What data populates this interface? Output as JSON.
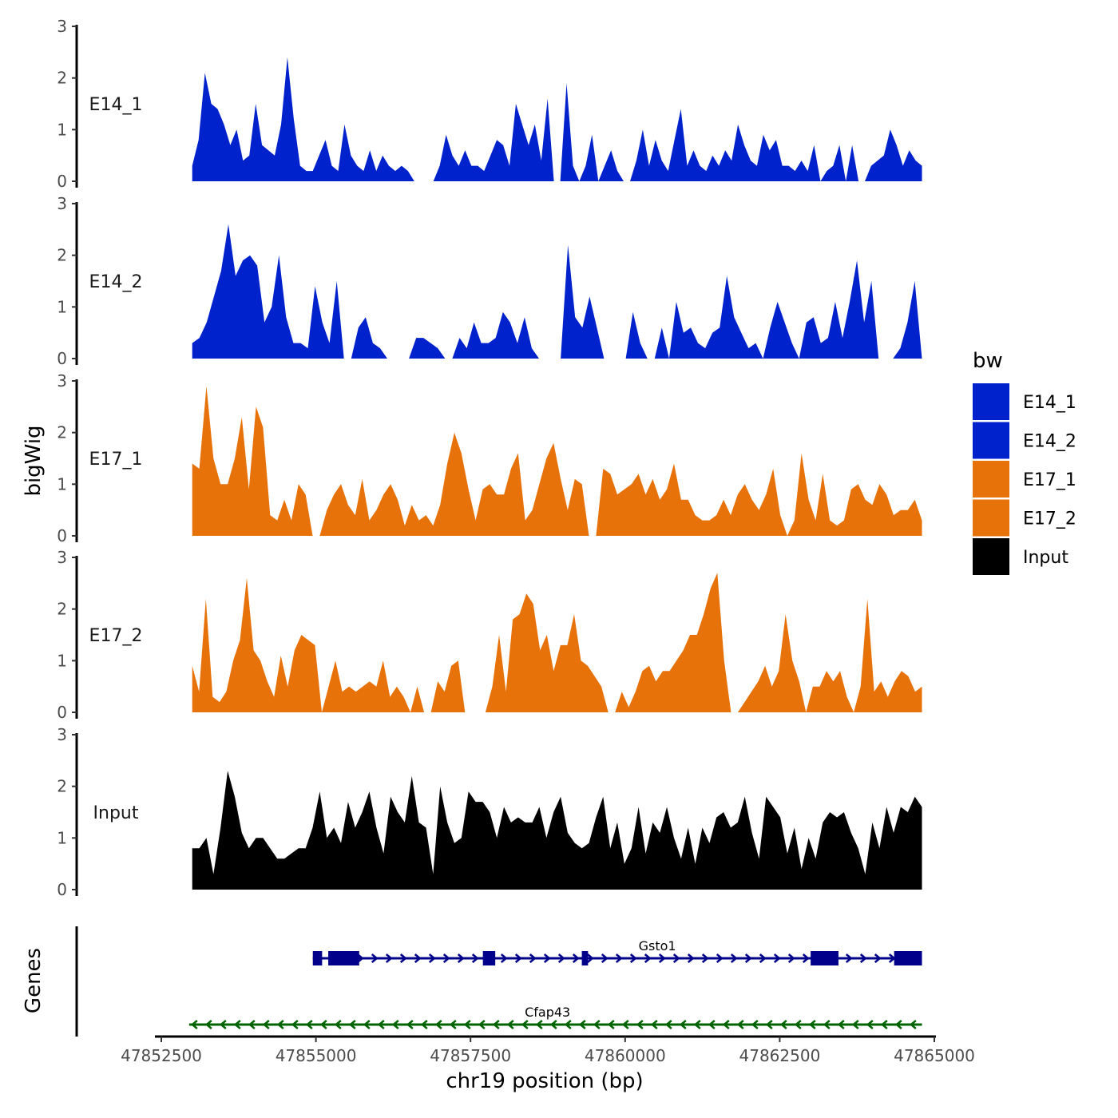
{
  "chart_data": {
    "type": "area",
    "xlabel": "chr19 position (bp)",
    "ylabel": "bigWig",
    "genes_axis_label": "Genes",
    "xlim": [
      47852400,
      47865200
    ],
    "x_ticks": [
      47852500,
      47855000,
      47857500,
      47860000,
      47862500,
      47865000
    ],
    "x_tick_labels": [
      "47852500",
      "47855000",
      "47857500",
      "47860000",
      "47862500",
      "47865000"
    ],
    "ylim": [
      0,
      3
    ],
    "y_ticks": [
      0,
      1,
      2,
      3
    ],
    "y_tick_labels": [
      "0",
      "1",
      "2",
      "3"
    ],
    "track_start": 47853000,
    "track_end": 47864800,
    "series": [
      {
        "name": "E14_1",
        "color": "#0022CC",
        "values": [
          0.3,
          0.8,
          2.1,
          1.5,
          1.4,
          1.1,
          0.7,
          1.0,
          0.4,
          0.5,
          1.5,
          0.7,
          0.6,
          0.5,
          1.1,
          2.4,
          1.2,
          0.3,
          0.2,
          0.2,
          0.5,
          0.8,
          0.3,
          0.2,
          1.1,
          0.5,
          0.3,
          0.2,
          0.6,
          0.2,
          0.5,
          0.3,
          0.2,
          0.3,
          0.2,
          0,
          0,
          0,
          0,
          0.3,
          0.9,
          0.5,
          0.3,
          0.6,
          0.3,
          0.3,
          0.2,
          0.5,
          0.8,
          0.7,
          0.3,
          1.5,
          1.1,
          0.7,
          1.1,
          0.4,
          1.6,
          0,
          0,
          1.9,
          0.3,
          0,
          0.3,
          0.9,
          0,
          0.3,
          0.6,
          0.2,
          0,
          0,
          0.4,
          1.0,
          0.3,
          0.8,
          0.4,
          0.2,
          0.8,
          1.4,
          0.3,
          0.6,
          0.3,
          0.2,
          0.5,
          0.3,
          0.6,
          0.4,
          1.1,
          0.7,
          0.4,
          0.3,
          0.9,
          0.6,
          0.8,
          0.3,
          0.3,
          0.2,
          0.4,
          0.2,
          0.7,
          0,
          0.2,
          0.3,
          0.7,
          0,
          0.7,
          0,
          0,
          0.3,
          0.4,
          0.5,
          1.0,
          0.7,
          0.3,
          0.6,
          0.4,
          0.3
        ]
      },
      {
        "name": "E14_2",
        "color": "#0022CC",
        "values": [
          0.3,
          0.4,
          0.7,
          1.2,
          1.7,
          2.6,
          1.6,
          1.9,
          2.0,
          1.8,
          0.7,
          1.0,
          2.0,
          0.8,
          0.3,
          0.3,
          0.2,
          1.4,
          0.7,
          0.3,
          1.5,
          0,
          0,
          0.6,
          0.8,
          0.3,
          0.2,
          0,
          0,
          0,
          0,
          0.4,
          0.4,
          0.3,
          0.2,
          0,
          0,
          0.4,
          0.2,
          0.7,
          0.3,
          0.3,
          0.4,
          0.9,
          0.7,
          0.3,
          0.8,
          0.2,
          0,
          0,
          0,
          0,
          2.2,
          0.8,
          0.6,
          1.2,
          0.6,
          0,
          0,
          0,
          0,
          0.9,
          0.3,
          0,
          0,
          0.6,
          0,
          1.1,
          0.5,
          0.6,
          0.3,
          0.2,
          0.5,
          0.6,
          1.6,
          0.8,
          0.5,
          0.2,
          0.3,
          0,
          0.6,
          1.1,
          0.7,
          0.3,
          0,
          0.7,
          0.8,
          0.3,
          0.4,
          1.1,
          0.4,
          1.1,
          1.9,
          0.7,
          1.5,
          0,
          0,
          0,
          0.2,
          0.7,
          1.5,
          0
        ]
      },
      {
        "name": "E17_1",
        "color": "#E8720A",
        "values": [
          1.4,
          1.3,
          2.9,
          1.5,
          1.0,
          1.0,
          1.5,
          2.3,
          0.9,
          2.5,
          2.1,
          0.4,
          0.3,
          0.7,
          0.3,
          1.0,
          0.8,
          0,
          0,
          0.5,
          0.8,
          1.0,
          0.6,
          0.4,
          1.1,
          0.3,
          0.5,
          0.8,
          1.0,
          0.7,
          0.2,
          0.6,
          0.3,
          0.4,
          0.2,
          0.6,
          1.4,
          2.0,
          1.6,
          0.9,
          0.3,
          0.9,
          1.0,
          0.8,
          0.8,
          1.3,
          1.6,
          0.3,
          0.5,
          1.0,
          1.5,
          1.8,
          1.1,
          0.5,
          1.1,
          1.0,
          0,
          0,
          1.3,
          1.2,
          0.8,
          0.9,
          1.0,
          1.2,
          0.8,
          1.1,
          0.7,
          0.9,
          1.4,
          0.7,
          0.7,
          0.4,
          0.3,
          0.3,
          0.4,
          0.7,
          0.4,
          0.8,
          1.0,
          0.7,
          0.5,
          0.8,
          1.3,
          0.4,
          0,
          0.3,
          1.6,
          0.7,
          0.3,
          1.2,
          0.3,
          0.2,
          0.3,
          0.9,
          1.0,
          0.7,
          0.6,
          1.0,
          0.8,
          0.4,
          0.5,
          0.5,
          0.7,
          0.3
        ]
      },
      {
        "name": "E17_2",
        "color": "#E8720A",
        "values": [
          0.9,
          0.4,
          2.2,
          0.3,
          0.2,
          0.4,
          1.0,
          1.4,
          2.6,
          1.2,
          1.0,
          0.6,
          0.3,
          1.1,
          0.5,
          1.2,
          1.5,
          1.4,
          1.3,
          0,
          0.5,
          1.0,
          0.4,
          0.5,
          0.4,
          0.5,
          0.6,
          0.5,
          1.0,
          0.3,
          0.5,
          0.3,
          0,
          0.5,
          0,
          0,
          0.6,
          0.4,
          0.9,
          1.0,
          0,
          0,
          0,
          0,
          0.5,
          1.5,
          0.4,
          1.8,
          1.9,
          2.3,
          2.1,
          1.2,
          1.5,
          0.8,
          1.3,
          1.3,
          1.9,
          1.0,
          0.9,
          0.7,
          0.5,
          0,
          0,
          0.4,
          0.1,
          0.4,
          0.8,
          0.9,
          0.6,
          0.8,
          0.8,
          1.0,
          1.2,
          1.5,
          1.5,
          1.9,
          2.4,
          2.7,
          1.0,
          0,
          0,
          0.2,
          0.4,
          0.6,
          0.9,
          0.5,
          0.8,
          1.9,
          1.0,
          0.6,
          0,
          0.5,
          0.5,
          0.8,
          0.6,
          0.8,
          0.3,
          0,
          0.5,
          2.2,
          0.4,
          0.6,
          0.3,
          0.6,
          0.8,
          0.7,
          0.4,
          0.5
        ]
      },
      {
        "name": "Input",
        "color": "#000000",
        "values": [
          0.8,
          0.8,
          1.0,
          0.3,
          1.2,
          2.3,
          1.8,
          1.1,
          0.8,
          1.0,
          1.0,
          0.8,
          0.6,
          0.6,
          0.7,
          0.8,
          0.8,
          1.2,
          1.9,
          1.0,
          1.2,
          0.9,
          1.7,
          1.2,
          1.5,
          1.9,
          1.2,
          0.7,
          1.8,
          1.5,
          1.3,
          2.2,
          1.3,
          1.2,
          0.3,
          2.0,
          1.3,
          0.9,
          1.0,
          1.9,
          1.7,
          1.7,
          1.5,
          1.0,
          1.6,
          1.3,
          1.4,
          1.3,
          1.3,
          1.6,
          1.0,
          1.5,
          1.8,
          1.1,
          0.9,
          0.8,
          0.9,
          1.4,
          1.8,
          0.8,
          1.3,
          0.5,
          0.8,
          1.6,
          0.7,
          1.3,
          1.1,
          1.6,
          1.0,
          0.6,
          1.2,
          0.5,
          1.2,
          0.9,
          1.4,
          1.5,
          1.2,
          1.3,
          1.8,
          1.1,
          0.6,
          1.8,
          1.6,
          1.4,
          0.7,
          1.2,
          0.4,
          1.0,
          0.6,
          1.3,
          1.5,
          1.4,
          1.5,
          1.1,
          0.8,
          0.3,
          1.3,
          0.8,
          1.6,
          1.1,
          1.6,
          1.5,
          1.8,
          1.6
        ]
      }
    ],
    "legend": {
      "title": "bw",
      "position": "right",
      "entries": [
        {
          "label": "E14_1",
          "color": "#0022CC"
        },
        {
          "label": "E14_2",
          "color": "#0022CC"
        },
        {
          "label": "E17_1",
          "color": "#E8720A"
        },
        {
          "label": "E17_2",
          "color": "#E8720A"
        },
        {
          "label": "Input",
          "color": "#000000"
        }
      ]
    },
    "genes": [
      {
        "name": "Gsto1",
        "strand": "+",
        "start": 47854950,
        "end": 47864800,
        "color": "#00008B",
        "exons": [
          [
            47854950,
            47855100
          ],
          [
            47855200,
            47855700
          ],
          [
            47857700,
            47857900
          ],
          [
            47859300,
            47859400
          ],
          [
            47863000,
            47863450
          ],
          [
            47864350,
            47864800
          ]
        ]
      },
      {
        "name": "Cfap43",
        "strand": "-",
        "start": 47852950,
        "end": 47864800,
        "color": "#006400",
        "exons": []
      }
    ]
  }
}
